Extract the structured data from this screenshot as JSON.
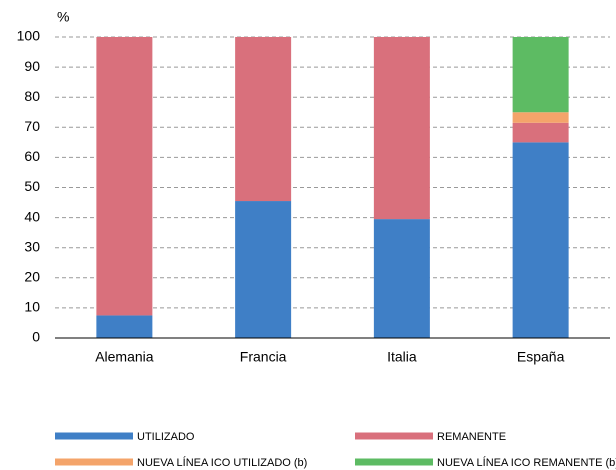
{
  "chart_data": {
    "type": "stacked_bar",
    "y_label": "%",
    "categories": [
      "Alemania",
      "Francia",
      "Italia",
      "España"
    ],
    "series": [
      {
        "name": "UTILIZADO",
        "color": "#3f7fc6",
        "values": [
          7.5,
          45.5,
          39.5,
          65
        ]
      },
      {
        "name": "REMANENTE",
        "color": "#d9707c",
        "values": [
          92.5,
          54.5,
          60.5,
          6.5
        ]
      },
      {
        "name": "NUEVA LÍNEA ICO UTILIZADO (b)",
        "color": "#f4a46a",
        "values": [
          0,
          0,
          0,
          3.5
        ]
      },
      {
        "name": "NUEVA LÍNEA ICO REMANENTE (b)",
        "color": "#5dbb63",
        "values": [
          0,
          0,
          0,
          25
        ]
      }
    ],
    "ylim": [
      0,
      100
    ],
    "yticks": [
      0,
      10,
      20,
      30,
      40,
      50,
      60,
      70,
      80,
      90,
      100
    ],
    "grid": true
  }
}
